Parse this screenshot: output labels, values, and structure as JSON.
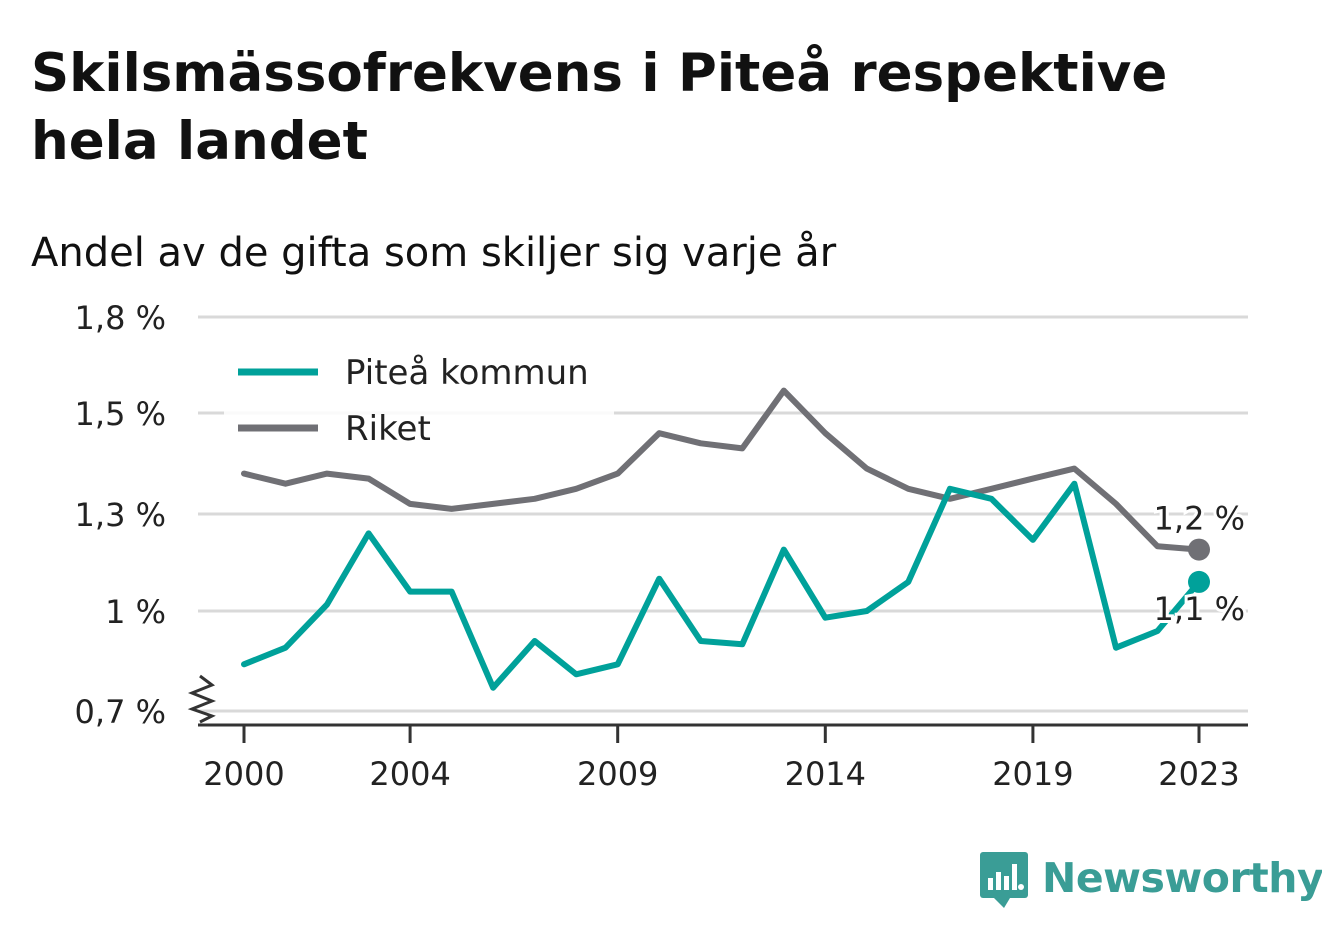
{
  "title": "Skilsmässofrekvens i Piteå respektive hela landet",
  "subtitle": "Andel av de gifta som skiljer sig varje år",
  "colors": {
    "pitea": "#00a19a",
    "riket": "#707075",
    "grid": "#d9d9d9",
    "axis": "#333333",
    "brand": "#3a9d96"
  },
  "brand": {
    "name": "Newsworthy",
    "icon": "bar-chart-speech-bubble-icon"
  },
  "chart_data": {
    "type": "line",
    "x": [
      2000,
      2001,
      2002,
      2003,
      2004,
      2005,
      2006,
      2007,
      2008,
      2009,
      2010,
      2011,
      2012,
      2013,
      2014,
      2015,
      2016,
      2017,
      2018,
      2019,
      2020,
      2021,
      2022,
      2023
    ],
    "ylim": [
      0.66,
      1.8
    ],
    "y_ticks": [
      0.7,
      1.0,
      1.3,
      1.5,
      1.8
    ],
    "y_tick_labels": [
      "0,7 %",
      "1 %",
      "1,3 %",
      "1,5 %",
      "1,8 %"
    ],
    "x_ticks": [
      2000,
      2004,
      2009,
      2014,
      2019,
      2023
    ],
    "x_tick_labels": [
      "2000",
      "2004",
      "2009",
      "2014",
      "2019",
      "2023"
    ],
    "grid": true,
    "axis_break": true,
    "legend_position": "top-left",
    "series": [
      {
        "name": "Piteå kommun",
        "color": "#00a19a",
        "values": [
          0.84,
          0.89,
          1.02,
          1.24,
          1.06,
          1.06,
          0.77,
          0.91,
          0.81,
          0.84,
          1.1,
          0.91,
          0.9,
          1.19,
          0.98,
          1.0,
          1.09,
          1.35,
          1.33,
          1.22,
          1.36,
          0.89,
          0.94,
          1.09
        ],
        "end_label": "1,1 %"
      },
      {
        "name": "Riket",
        "color": "#707075",
        "values": [
          1.38,
          1.36,
          1.38,
          1.37,
          1.32,
          1.31,
          1.32,
          1.33,
          1.35,
          1.38,
          1.46,
          1.44,
          1.43,
          1.57,
          1.46,
          1.39,
          1.35,
          1.33,
          1.35,
          1.37,
          1.39,
          1.32,
          1.2,
          1.19
        ],
        "end_label": "1,2 %"
      }
    ]
  }
}
